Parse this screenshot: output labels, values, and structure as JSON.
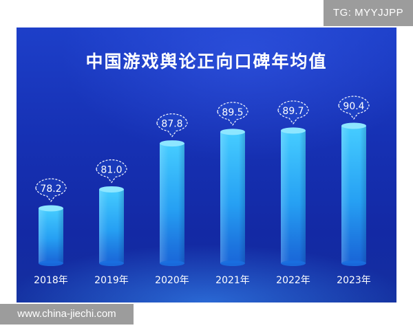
{
  "watermark": {
    "top_right": "TG: MYYJJPP",
    "bottom_left": "www.china-jiechi.com"
  },
  "colors": {
    "background_top": "#1d3fc9",
    "background_bottom": "#14309f",
    "bar_light": "#3fc8ff",
    "bar_dark": "#1a7be8",
    "text": "#ffffff"
  },
  "chart_data": {
    "type": "bar",
    "title": "中国游戏舆论正向口碑年均值",
    "categories": [
      "2018年",
      "2019年",
      "2020年",
      "2021年",
      "2022年",
      "2023年"
    ],
    "values": [
      78.2,
      81.0,
      87.8,
      89.5,
      89.7,
      90.4
    ],
    "value_labels": [
      "78.2",
      "81.0",
      "87.8",
      "89.5",
      "89.7",
      "90.4"
    ],
    "grid": false,
    "legend": "none"
  }
}
